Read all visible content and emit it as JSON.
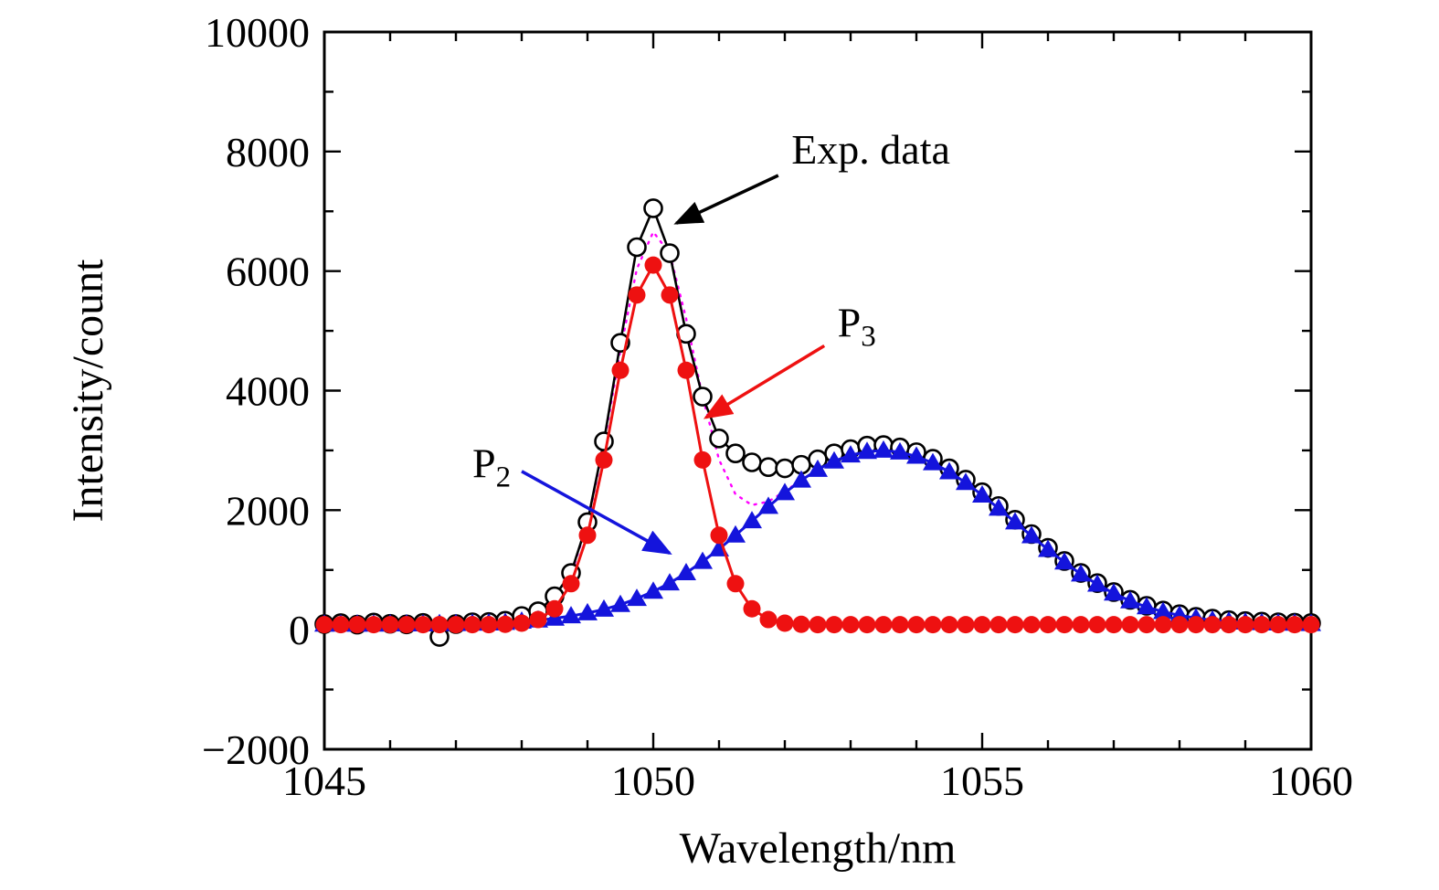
{
  "figure": {
    "background": "#ffffff",
    "frame_color": "#000000"
  },
  "chart_data": {
    "type": "line",
    "title": "",
    "xlabel": "Wavelength/nm",
    "ylabel": "Intensity/count",
    "xlim": [
      1045,
      1060
    ],
    "ylim": [
      -2000,
      10000
    ],
    "grid": false,
    "legend": "none (curves labeled by annotations with arrows)",
    "x_major_ticks": [
      1045,
      1050,
      1055,
      1060
    ],
    "x_tick_labels": [
      "1045",
      "1050",
      "1055",
      "1060"
    ],
    "x_minor_step": 1,
    "y_major_ticks": [
      -2000,
      0,
      2000,
      4000,
      6000,
      8000,
      10000
    ],
    "y_tick_labels": [
      "−2000",
      "0",
      "2000",
      "4000",
      "6000",
      "8000",
      "10000"
    ],
    "y_minor_step": 1000,
    "x": [
      1045,
      1045.25,
      1045.5,
      1045.75,
      1046,
      1046.25,
      1046.5,
      1046.75,
      1047,
      1047.25,
      1047.5,
      1047.75,
      1048,
      1048.25,
      1048.5,
      1048.75,
      1049,
      1049.25,
      1049.5,
      1049.75,
      1050,
      1050.25,
      1050.5,
      1050.75,
      1051,
      1051.25,
      1051.5,
      1051.75,
      1052,
      1052.25,
      1052.5,
      1052.75,
      1053,
      1053.25,
      1053.5,
      1053.75,
      1054,
      1054.25,
      1054.5,
      1054.75,
      1055,
      1055.25,
      1055.5,
      1055.75,
      1056,
      1056.25,
      1056.5,
      1056.75,
      1057,
      1057.25,
      1057.5,
      1057.75,
      1058,
      1058.25,
      1058.5,
      1058.75,
      1059,
      1059.25,
      1059.5,
      1059.75,
      1060
    ],
    "series": [
      {
        "name": "Exp. data",
        "color": "#000000",
        "marker": "open-circle",
        "line": "solid",
        "values": [
          95,
          110,
          85,
          120,
          100,
          90,
          115,
          -120,
          95,
          125,
          130,
          150,
          230,
          310,
          560,
          950,
          1800,
          3150,
          4800,
          6400,
          7050,
          6300,
          4950,
          3900,
          3200,
          2950,
          2800,
          2720,
          2700,
          2760,
          2850,
          2950,
          3020,
          3080,
          3090,
          3050,
          2970,
          2860,
          2700,
          2510,
          2300,
          2070,
          1840,
          1600,
          1370,
          1150,
          950,
          780,
          630,
          500,
          400,
          320,
          260,
          215,
          185,
          160,
          145,
          135,
          125,
          118,
          112
        ]
      },
      {
        "name": "P3",
        "color": "#ee1111",
        "marker": "filled-circle",
        "line": "solid",
        "values": [
          85,
          85,
          85,
          85,
          85,
          85,
          85,
          85,
          85,
          85,
          85,
          90,
          110,
          170,
          350,
          770,
          1580,
          2840,
          4340,
          5600,
          6100,
          5600,
          4340,
          2840,
          1580,
          770,
          350,
          170,
          110,
          90,
          85,
          85,
          85,
          85,
          85,
          85,
          85,
          85,
          85,
          85,
          85,
          85,
          85,
          85,
          85,
          85,
          85,
          85,
          85,
          85,
          85,
          85,
          85,
          85,
          85,
          85,
          85,
          85,
          85,
          85,
          85
        ]
      },
      {
        "name": "P2",
        "color": "#1414dc",
        "marker": "filled-triangle",
        "line": "solid",
        "values": [
          90,
          90,
          90,
          90,
          95,
          95,
          95,
          100,
          100,
          105,
          110,
          120,
          140,
          160,
          190,
          230,
          280,
          340,
          420,
          520,
          640,
          780,
          950,
          1140,
          1350,
          1580,
          1820,
          2060,
          2290,
          2500,
          2680,
          2820,
          2920,
          2980,
          3000,
          2970,
          2900,
          2790,
          2640,
          2460,
          2250,
          2030,
          1800,
          1570,
          1340,
          1130,
          930,
          760,
          610,
          480,
          380,
          300,
          240,
          195,
          160,
          140,
          125,
          115,
          110,
          105,
          100
        ]
      },
      {
        "name": "Fit sum (P2+P3)",
        "color": "#ff00ff",
        "marker": "none",
        "line": "dotted",
        "derived_from": [
          "P2",
          "P3"
        ],
        "values": null
      }
    ],
    "annotations": [
      {
        "text": "Exp. data",
        "sub": "",
        "color": "#000000",
        "text_xy": [
          1052.1,
          7800
        ],
        "arrow_from": [
          1051.9,
          7600
        ],
        "arrow_to": [
          1050.35,
          6800
        ]
      },
      {
        "text": "P",
        "sub": "3",
        "color": "#ee1111",
        "text_xy": [
          1052.8,
          4900
        ],
        "arrow_from": [
          1052.6,
          4750
        ],
        "arrow_to": [
          1050.8,
          3550
        ]
      },
      {
        "text": "P",
        "sub": "2",
        "color": "#1414dc",
        "text_xy": [
          1047.25,
          2550
        ],
        "arrow_from": [
          1048.0,
          2650
        ],
        "arrow_to": [
          1050.25,
          1280
        ]
      }
    ]
  }
}
